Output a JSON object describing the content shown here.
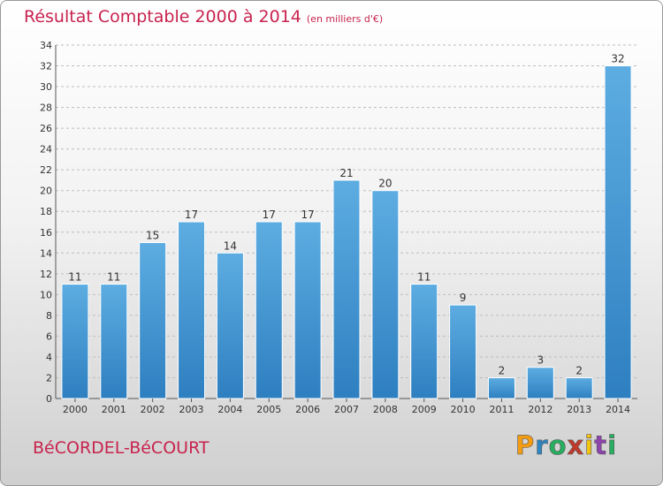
{
  "header": {
    "title": "Résultat Comptable 2000 à 2014",
    "subtitle": "(en milliers d'€)"
  },
  "footer": {
    "commune": "BéCORDEL-BéCOURT",
    "brand": {
      "letters": [
        "P",
        "r",
        "o",
        "x",
        "i",
        "t",
        "i"
      ],
      "colors": [
        "#f39c12",
        "#2e86c1",
        "#27ae60",
        "#c0392b",
        "#f1c40f",
        "#8e44ad",
        "#27ae60"
      ]
    }
  },
  "chart_data": {
    "type": "bar",
    "categories": [
      "2000",
      "2001",
      "2002",
      "2003",
      "2004",
      "2005",
      "2006",
      "2007",
      "2008",
      "2009",
      "2010",
      "2011",
      "2012",
      "2013",
      "2014"
    ],
    "values": [
      11,
      11,
      15,
      17,
      14,
      17,
      17,
      21,
      20,
      11,
      9,
      2,
      3,
      2,
      32
    ],
    "ylim": [
      0,
      34
    ],
    "yticks": [
      "0",
      "2",
      "4",
      "6",
      "8",
      "10",
      "12",
      "14",
      "16",
      "18",
      "20",
      "22",
      "24",
      "26",
      "28",
      "30",
      "32",
      "34"
    ],
    "grid": true,
    "bar_color_top": "#5dade2",
    "bar_color_bottom": "#2e7fc0",
    "title": "Résultat Comptable 2000 à 2014",
    "xlabel": "",
    "ylabel": ""
  }
}
